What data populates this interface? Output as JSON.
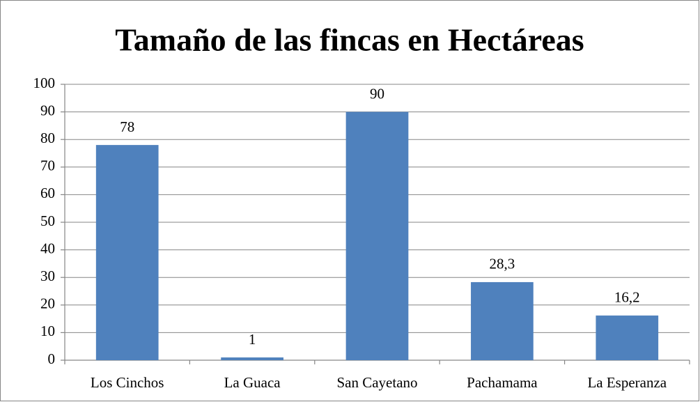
{
  "chart_data": {
    "type": "bar",
    "title": "Tamaño de las fincas en Hectáreas",
    "categories": [
      "Los Cinchos",
      "La Guaca",
      "San Cayetano",
      "Pachamama",
      "La Esperanza"
    ],
    "values": [
      78,
      1,
      90,
      28.3,
      16.2
    ],
    "value_labels": [
      "78",
      "1",
      "90",
      "28,3",
      "16,2"
    ],
    "color": "#4f81bd",
    "ylim": [
      0,
      100
    ],
    "yticks": [
      0,
      10,
      20,
      30,
      40,
      50,
      60,
      70,
      80,
      90,
      100
    ],
    "grid": true
  }
}
